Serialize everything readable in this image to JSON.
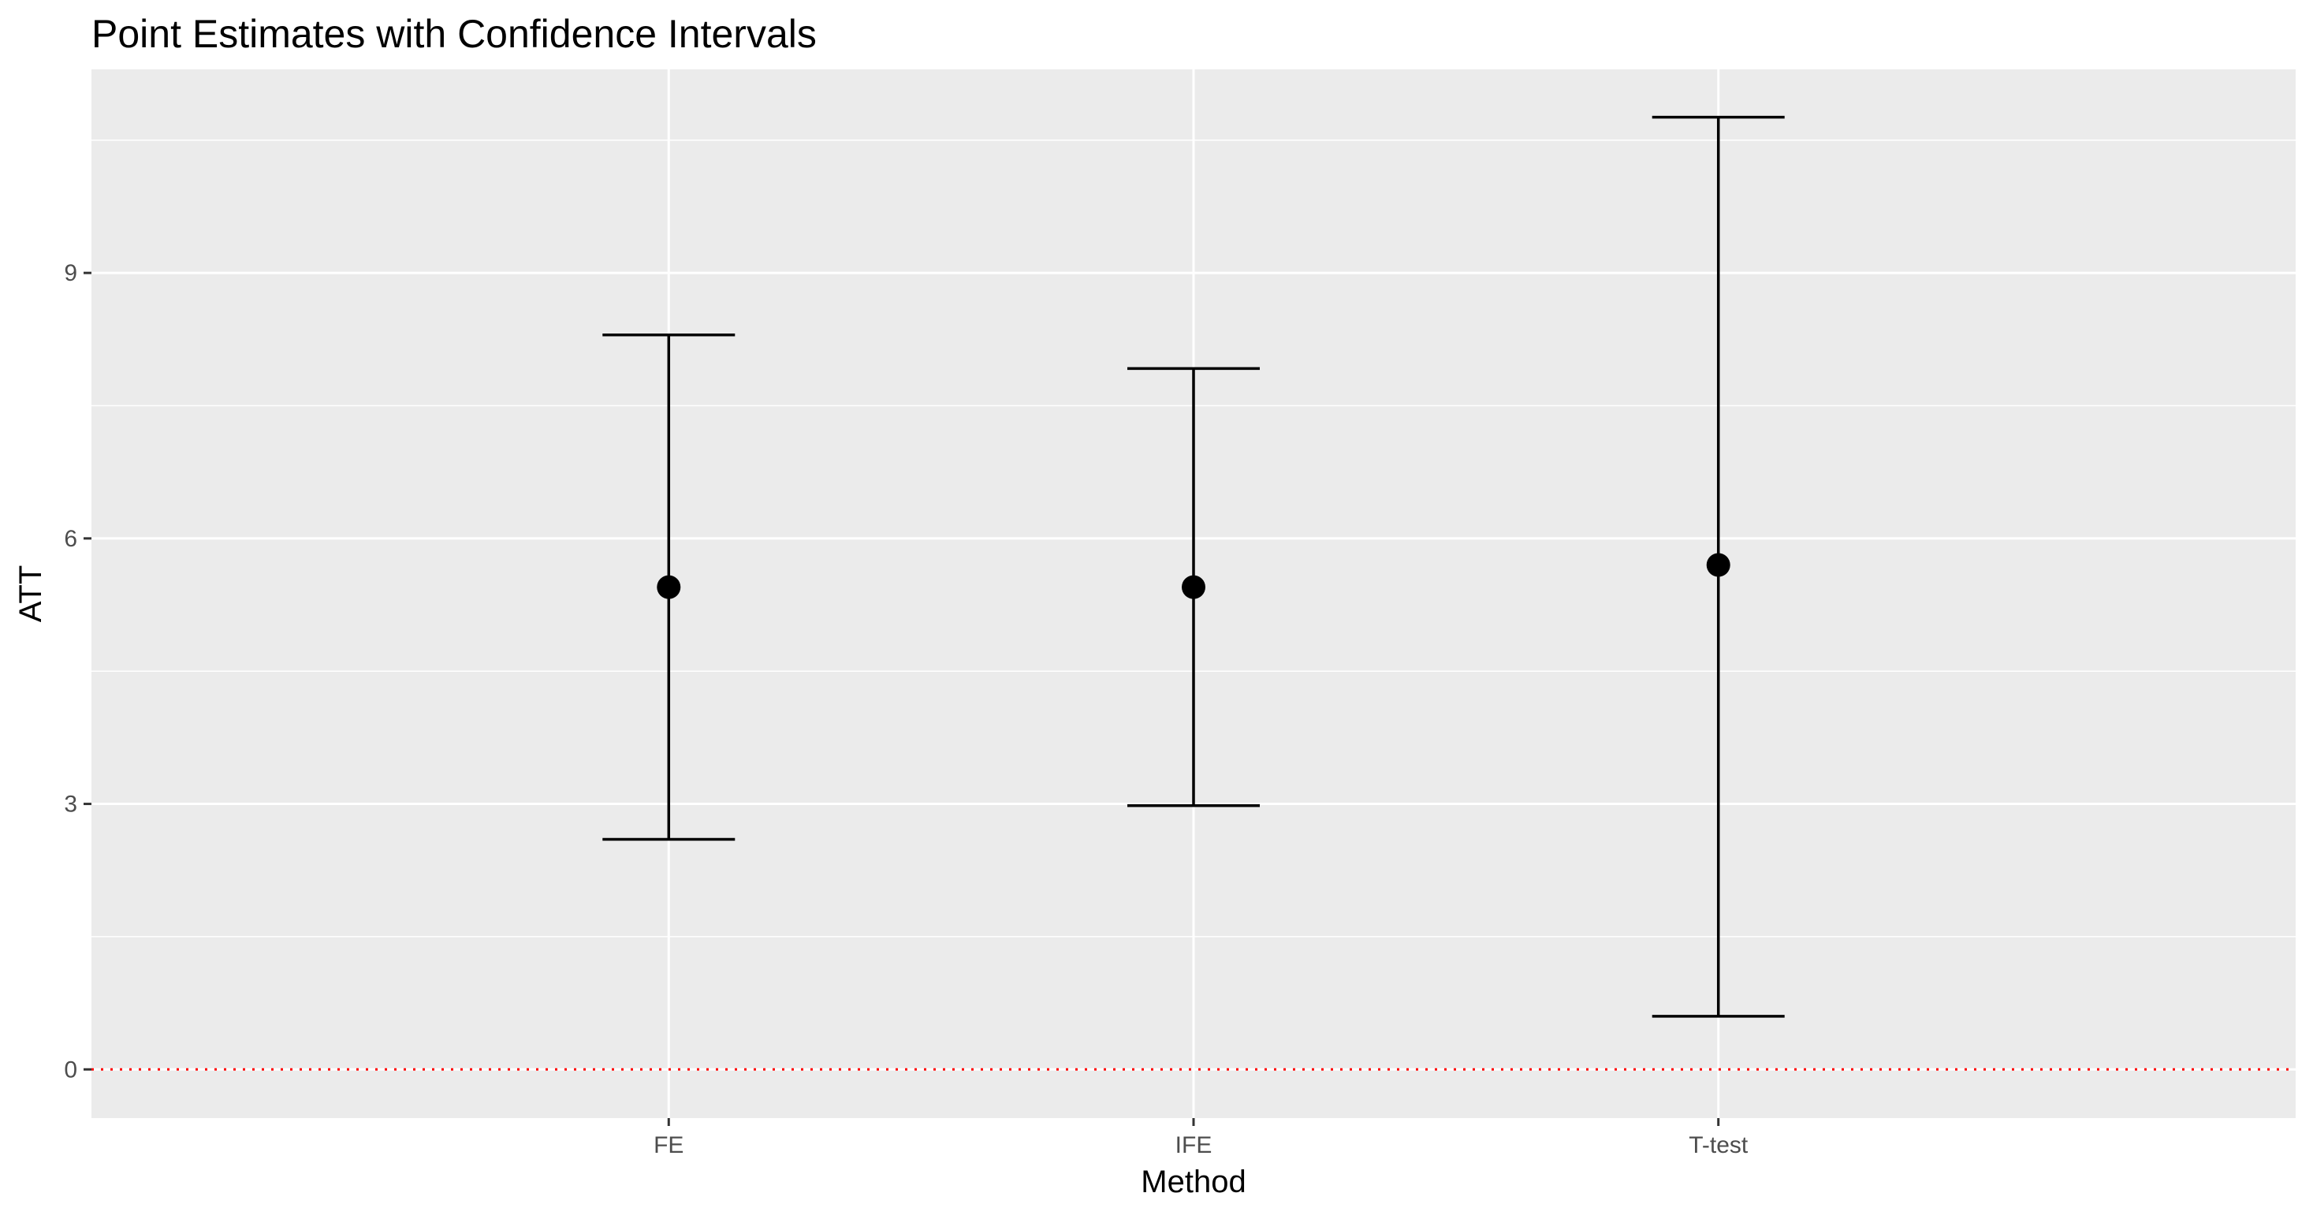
{
  "chart_data": {
    "type": "errorbar",
    "title": "Point Estimates with Confidence Intervals",
    "xlabel": "Method",
    "ylabel": "ATT",
    "categories": [
      "FE",
      "IFE",
      "T-test"
    ],
    "estimates": [
      5.45,
      5.45,
      5.7
    ],
    "ci_lower": [
      2.6,
      2.98,
      0.6
    ],
    "ci_upper": [
      8.3,
      7.92,
      10.76
    ],
    "ylim": [
      -0.55,
      11.3
    ],
    "yticks": [
      0,
      3,
      6,
      9
    ],
    "reference_line": {
      "y": 0,
      "style": "dotted",
      "color": "#ff0000"
    },
    "grid": true,
    "colors": {
      "panel": "#ebebeb",
      "grid": "#ffffff",
      "marks": "#000000"
    }
  }
}
